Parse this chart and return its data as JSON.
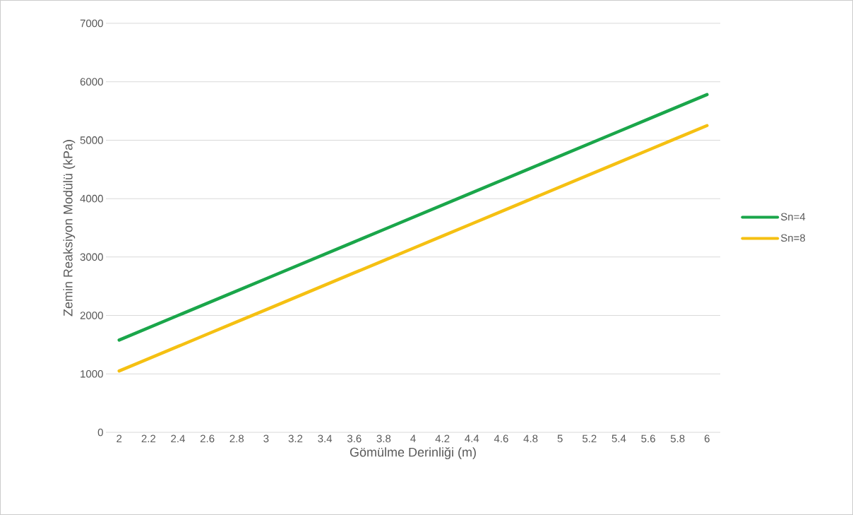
{
  "chart_data": {
    "type": "line",
    "xlabel": "Gömülme Derinliği (m)",
    "ylabel": "Zemin Reaksiyon Modülü (kPa)",
    "categories": [
      "2",
      "2.2",
      "2.4",
      "2.6",
      "2.8",
      "3",
      "3.2",
      "3.4",
      "3.6",
      "3.8",
      "4",
      "4.2",
      "4.4",
      "4.6",
      "4.8",
      "5",
      "5.2",
      "5.4",
      "5.6",
      "5.8",
      "6"
    ],
    "series": [
      {
        "name": "Sn=4",
        "color": "#1aa64a",
        "values": [
          1580,
          1790,
          2000,
          2210,
          2420,
          2630,
          2840,
          3050,
          3260,
          3470,
          3680,
          3890,
          4100,
          4310,
          4520,
          4730,
          4940,
          5150,
          5360,
          5570,
          5780
        ]
      },
      {
        "name": "Sn=8",
        "color": "#f5c012",
        "values": [
          1050,
          1260,
          1470,
          1680,
          1890,
          2100,
          2310,
          2520,
          2730,
          2940,
          3150,
          3360,
          3570,
          3780,
          3990,
          4200,
          4410,
          4620,
          4830,
          5040,
          5250
        ]
      }
    ],
    "ylim": [
      0,
      7000
    ],
    "yticks": [
      0,
      1000,
      2000,
      3000,
      4000,
      5000,
      6000,
      7000
    ],
    "grid": "y",
    "legend": "right",
    "marker": "none",
    "line_style": "solid"
  }
}
